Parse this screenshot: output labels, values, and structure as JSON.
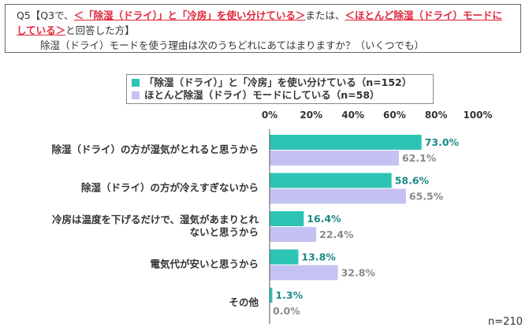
{
  "question": {
    "q_prefix": "Q5【Q3で、",
    "q_red1": "＜「除湿（ドライ）」と「冷房」を使い分けている＞",
    "q_mid": "または、",
    "q_red2a": "＜ほとんど除湿（ドライ）モードに",
    "q_red2b": "している＞",
    "q_suffix": "と回答した方】",
    "q_text": "除湿（ドライ）モードを使う理由は次のうちどれにあてはまりますか？（いくつでも）"
  },
  "n_total": "n=210",
  "colors": {
    "series1": "#2ec4b4",
    "series2": "#c4c2f2",
    "label1": "#1a8a87",
    "label2": "#8a8a8a"
  },
  "chart_data": {
    "type": "bar",
    "orientation": "horizontal",
    "categories": [
      [
        "除湿（ドライ）の方が湿気がとれると思うから"
      ],
      [
        "除湿（ドライ）の方が冷えすぎないから"
      ],
      [
        "冷房は温度を下げるだけで、湿気があまりとれ",
        "ないと思うから"
      ],
      [
        "電気代が安いと思うから"
      ],
      [
        "その他"
      ]
    ],
    "series": [
      {
        "name": "「除湿（ドライ）」と「冷房」を使い分けている（n=152）",
        "values": [
          73.0,
          58.6,
          16.4,
          13.8,
          1.3
        ]
      },
      {
        "name": "ほとんど除湿（ドライ）モードにしている（n=58）",
        "values": [
          62.1,
          65.5,
          22.4,
          32.8,
          0.0
        ]
      }
    ],
    "x_ticks": [
      "0%",
      "20%",
      "40%",
      "60%",
      "80%",
      "100%"
    ],
    "xlim": [
      0,
      100
    ],
    "grid": false,
    "legend": "top"
  }
}
